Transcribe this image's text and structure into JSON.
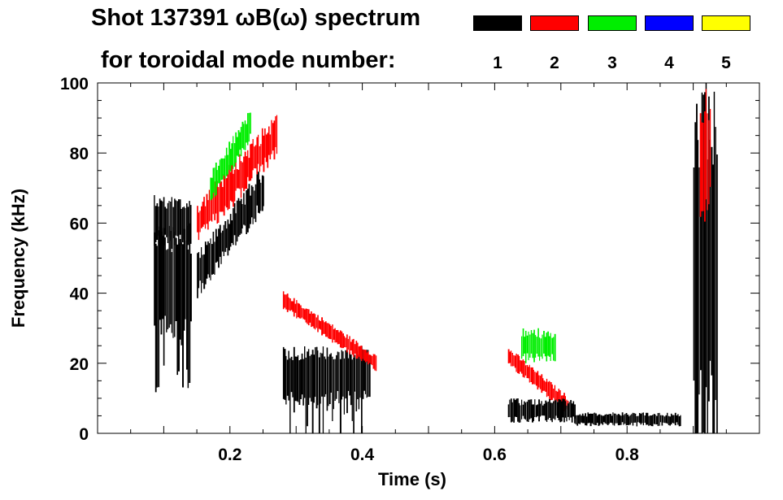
{
  "chart_data": {
    "type": "heatmap",
    "title_line1": "Shot 137391 ωB(ω) spectrum",
    "title_line2": "for toroidal mode number:",
    "xlabel": "Time (s)",
    "ylabel": "Frequency (kHz)",
    "xlim": [
      0.0,
      1.0
    ],
    "ylim": [
      0,
      100
    ],
    "xticks": [
      0.2,
      0.4,
      0.6,
      0.8
    ],
    "xtick_labels": [
      "0.2",
      "0.4",
      "0.6",
      "0.8"
    ],
    "yticks": [
      0,
      20,
      40,
      60,
      80,
      100
    ],
    "ytick_labels": [
      "0",
      "20",
      "40",
      "60",
      "80",
      "100"
    ],
    "legend": [
      {
        "label": "1",
        "color": "#000000"
      },
      {
        "label": "2",
        "color": "#ff0000"
      },
      {
        "label": "3",
        "color": "#00ee00"
      },
      {
        "label": "4",
        "color": "#0000ff"
      },
      {
        "label": "5",
        "color": "#ffff00"
      }
    ],
    "features": [
      {
        "mode": 1,
        "t": [
          0.085,
          0.14
        ],
        "f": [
          25,
          60
        ],
        "kind": "block"
      },
      {
        "mode": 1,
        "t": [
          0.085,
          0.14
        ],
        "f": [
          52,
          68
        ],
        "kind": "band"
      },
      {
        "mode": 1,
        "t": [
          0.15,
          0.25
        ],
        "f": [
          45,
          70
        ],
        "kind": "chirp-up"
      },
      {
        "mode": 2,
        "t": [
          0.15,
          0.27
        ],
        "f": [
          60,
          85
        ],
        "kind": "chirp-up"
      },
      {
        "mode": 3,
        "t": [
          0.17,
          0.23
        ],
        "f": [
          70,
          88
        ],
        "kind": "chirp-up"
      },
      {
        "mode": 1,
        "t": [
          0.28,
          0.41
        ],
        "f": [
          8,
          25
        ],
        "kind": "block"
      },
      {
        "mode": 2,
        "t": [
          0.28,
          0.42
        ],
        "f": [
          20,
          38
        ],
        "kind": "chirp-down"
      },
      {
        "mode": 2,
        "t": [
          0.62,
          0.71
        ],
        "f": [
          8,
          22
        ],
        "kind": "chirp-down"
      },
      {
        "mode": 3,
        "t": [
          0.64,
          0.69
        ],
        "f": [
          20,
          30
        ],
        "kind": "band"
      },
      {
        "mode": 1,
        "t": [
          0.62,
          0.72
        ],
        "f": [
          3,
          10
        ],
        "kind": "band"
      },
      {
        "mode": 1,
        "t": [
          0.72,
          0.88
        ],
        "f": [
          2,
          6
        ],
        "kind": "band"
      },
      {
        "mode": 1,
        "t": [
          0.9,
          0.935
        ],
        "f": [
          0,
          100
        ],
        "kind": "block"
      },
      {
        "mode": 2,
        "t": [
          0.91,
          0.925
        ],
        "f": [
          60,
          100
        ],
        "kind": "band"
      }
    ]
  }
}
